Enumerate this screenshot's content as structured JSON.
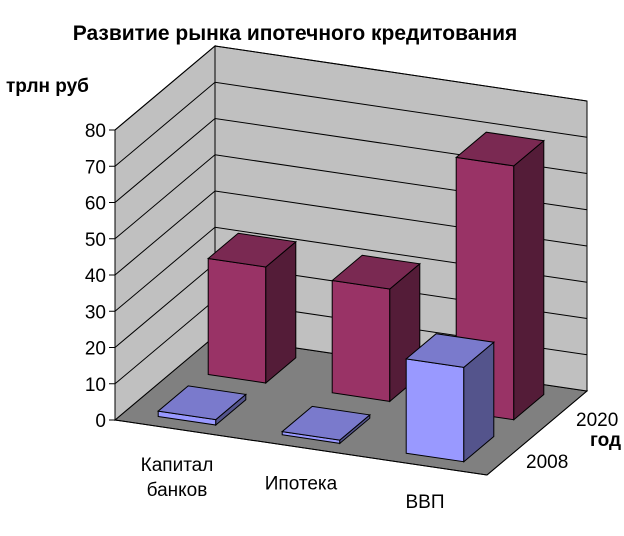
{
  "chart_data": {
    "type": "bar",
    "title": "Развитие рынка ипотечного кредитования",
    "ylabel": "трлн руб",
    "zlabel": "год",
    "ylim": [
      0,
      80
    ],
    "yticks": [
      "0",
      "10",
      "20",
      "30",
      "40",
      "50",
      "60",
      "70",
      "80"
    ],
    "categories": [
      "Капитал банков",
      "Ипотека",
      "ВВП"
    ],
    "category_lines": [
      [
        "Капитал",
        "банков"
      ],
      [
        "Ипотека"
      ],
      [
        "ВВП"
      ]
    ],
    "series": [
      {
        "name": "2008",
        "values": [
          1.5,
          0.9,
          26
        ],
        "color": "#9999ff"
      },
      {
        "name": "2020",
        "values": [
          32,
          31,
          70
        ],
        "color": "#993366"
      }
    ],
    "grid": true,
    "wall_color": "#c0c0c0",
    "floor_color": "#808080"
  }
}
